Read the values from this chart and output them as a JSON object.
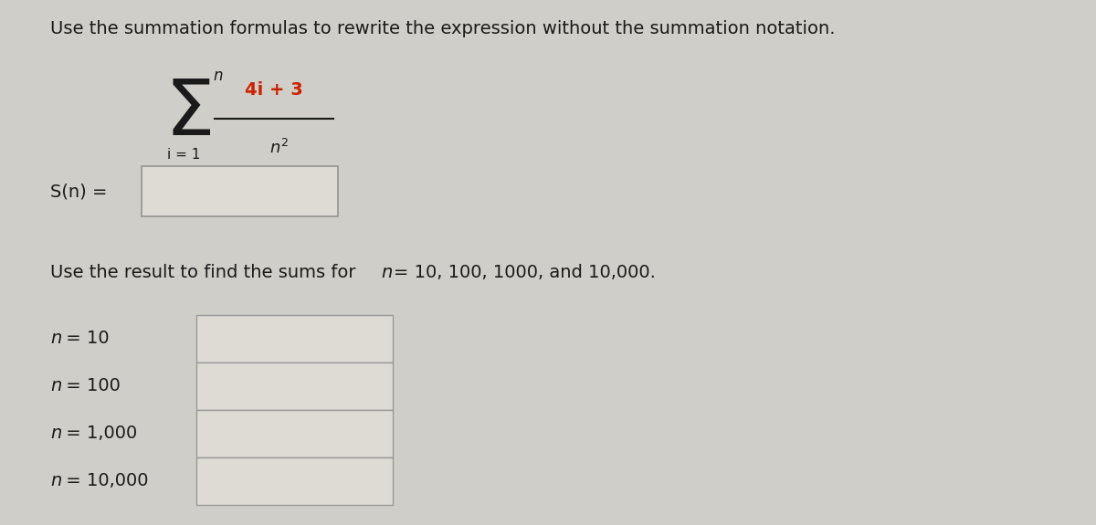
{
  "background_color": "#d0cec8",
  "title_text": "Use the summation formulas to rewrite the expression without the summation notation.",
  "title_fontsize": 13.5,
  "title_color": "#1a1a1a",
  "sigma_color": "#1a1a1a",
  "numerator_color": "#cc2200",
  "text_color": "#1a1a1a",
  "box_facecolor": "#dedad4",
  "box_edgecolor": "#999999",
  "rows": [
    {
      "label_n": "n",
      "label_rest": " = 10"
    },
    {
      "label_n": "n",
      "label_rest": " = 100"
    },
    {
      "label_n": "n",
      "label_rest": " = 1,000"
    },
    {
      "label_n": "n",
      "label_rest": " = 10,000"
    }
  ]
}
